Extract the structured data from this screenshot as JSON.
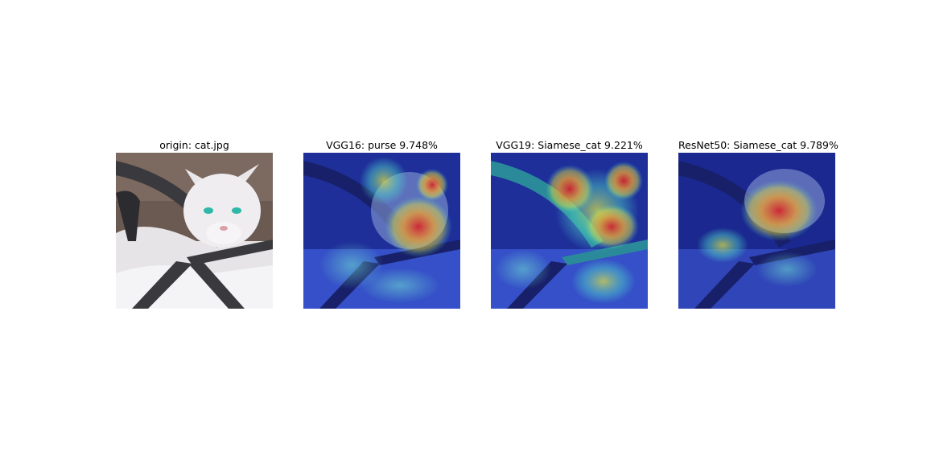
{
  "panels": [
    {
      "title": "origin: cat.jpg",
      "kind": "original"
    },
    {
      "title": "VGG16: purse 9.748%",
      "kind": "heatmap"
    },
    {
      "title": "VGG19: Siamese_cat 9.221%",
      "kind": "heatmap"
    },
    {
      "title": "ResNet50: Siamese_cat 9.789%",
      "kind": "heatmap"
    }
  ],
  "colors": {
    "background": "#ffffff",
    "heat_low": "#1a2ea8",
    "heat_mid": "#4fd6c8",
    "heat_high": "#d8202a"
  }
}
